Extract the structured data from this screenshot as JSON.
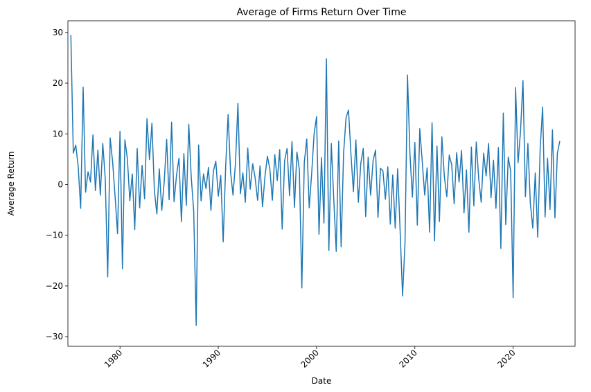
{
  "chart_data": {
    "type": "line",
    "title": "Average of Firms Return Over Time",
    "x_label": "Date",
    "y_label": "Average Return",
    "xlim": [
      1974.7,
      2026.3
    ],
    "ylim": [
      -31.9,
      32.3
    ],
    "xticks": [
      1980,
      1990,
      2000,
      2010,
      2020
    ],
    "yticks": [
      {
        "value": -30,
        "label": "−30"
      },
      {
        "value": -20,
        "label": "−20"
      },
      {
        "value": -10,
        "label": "−10"
      },
      0,
      10,
      20,
      30
    ],
    "grid": false,
    "x": [
      1975,
      1975.25,
      1975.5,
      1975.75,
      1976,
      1976.25,
      1976.5,
      1976.75,
      1977,
      1977.25,
      1977.5,
      1977.75,
      1978,
      1978.25,
      1978.5,
      1978.75,
      1979,
      1979.25,
      1979.5,
      1979.75,
      1980,
      1980.25,
      1980.5,
      1980.75,
      1981,
      1981.25,
      1981.5,
      1981.75,
      1982,
      1982.25,
      1982.5,
      1982.75,
      1983,
      1983.25,
      1983.5,
      1983.75,
      1984,
      1984.25,
      1984.5,
      1984.75,
      1985,
      1985.25,
      1985.5,
      1985.75,
      1986,
      1986.25,
      1986.5,
      1986.75,
      1987,
      1987.25,
      1987.5,
      1987.75,
      1988,
      1988.25,
      1988.5,
      1988.75,
      1989,
      1989.25,
      1989.5,
      1989.75,
      1990,
      1990.25,
      1990.5,
      1990.75,
      1991,
      1991.25,
      1991.5,
      1991.75,
      1992,
      1992.25,
      1992.5,
      1992.75,
      1993,
      1993.25,
      1993.5,
      1993.75,
      1994,
      1994.25,
      1994.5,
      1994.75,
      1995,
      1995.25,
      1995.5,
      1995.75,
      1996,
      1996.25,
      1996.5,
      1996.75,
      1997,
      1997.25,
      1997.5,
      1997.75,
      1998,
      1998.25,
      1998.5,
      1998.75,
      1999,
      1999.25,
      1999.5,
      1999.75,
      2000,
      2000.25,
      2000.5,
      2000.75,
      2001,
      2001.25,
      2001.5,
      2001.75,
      2002,
      2002.25,
      2002.5,
      2002.75,
      2003,
      2003.25,
      2003.5,
      2003.75,
      2004,
      2004.25,
      2004.5,
      2004.75,
      2005,
      2005.25,
      2005.5,
      2005.75,
      2006,
      2006.25,
      2006.5,
      2006.75,
      2007,
      2007.25,
      2007.5,
      2007.75,
      2008,
      2008.25,
      2008.5,
      2008.75,
      2009,
      2009.25,
      2009.5,
      2009.75,
      2010,
      2010.25,
      2010.5,
      2010.75,
      2011,
      2011.25,
      2011.5,
      2011.75,
      2012,
      2012.25,
      2012.5,
      2012.75,
      2013,
      2013.25,
      2013.5,
      2013.75,
      2014,
      2014.25,
      2014.5,
      2014.75,
      2015,
      2015.25,
      2015.5,
      2015.75,
      2016,
      2016.25,
      2016.5,
      2016.75,
      2017,
      2017.25,
      2017.5,
      2017.75,
      2018,
      2018.25,
      2018.5,
      2018.75,
      2019,
      2019.25,
      2019.5,
      2019.75,
      2020,
      2020.25,
      2020.5,
      2020.75,
      2021,
      2021.25,
      2021.5,
      2021.75,
      2022,
      2022.25,
      2022.5,
      2022.75,
      2023,
      2023.25,
      2023.5,
      2023.75,
      2024,
      2024.25,
      2024.5,
      2024.75
    ],
    "series": [
      {
        "color": "#1f77b4",
        "values": [
          29.5,
          6.2,
          7.8,
          3.5,
          -4.7,
          19.2,
          -1.5,
          2.5,
          0.5,
          9.8,
          -1.2,
          6.8,
          -2.1,
          8.1,
          1.2,
          -18.2,
          9.2,
          4.5,
          -2.3,
          -9.7,
          10.5,
          -16.6,
          8.8,
          5.1,
          -3.2,
          2.1,
          -8.9,
          7.1,
          -4.6,
          3.8,
          -2.8,
          13.0,
          4.9,
          12.1,
          -1.2,
          -5.8,
          3.1,
          -5.1,
          0.6,
          8.9,
          -3.0,
          12.3,
          -3.4,
          1.8,
          5.2,
          -7.3,
          6.1,
          -4.1,
          11.9,
          1.4,
          -5.2,
          -27.8,
          7.8,
          -3.2,
          2.1,
          -0.8,
          3.4,
          -5.1,
          2.6,
          4.6,
          -2.3,
          1.8,
          -11.3,
          3.5,
          13.8,
          2.5,
          -2.1,
          4.2,
          16.0,
          -1.8,
          2.3,
          -3.5,
          7.2,
          -0.9,
          4.1,
          1.3,
          -3.1,
          3.7,
          -4.4,
          1.6,
          5.6,
          3.0,
          -3.1,
          5.9,
          0.8,
          6.9,
          -8.8,
          4.7,
          7.1,
          -2.2,
          8.5,
          -4.5,
          6.4,
          2.9,
          -20.4,
          4.3,
          9.0,
          -4.6,
          2.1,
          10.0,
          13.4,
          -9.8,
          5.3,
          -7.6,
          24.8,
          -13.0,
          8.1,
          -2.9,
          -13.2,
          8.6,
          -12.3,
          6.2,
          13.2,
          14.7,
          5.9,
          -1.4,
          8.8,
          -3.5,
          4.2,
          7.1,
          -6.3,
          5.4,
          -2.1,
          4.7,
          6.8,
          -6.5,
          3.2,
          2.7,
          -2.9,
          3.5,
          -7.8,
          1.9,
          -8.6,
          3.1,
          -9.1,
          -22.0,
          -11.4,
          21.6,
          6.1,
          -2.5,
          8.3,
          -8.0,
          11.0,
          4.6,
          -2.1,
          3.3,
          -9.4,
          12.2,
          -11.1,
          7.6,
          -7.3,
          9.4,
          1.6,
          -2.4,
          5.8,
          3.9,
          -3.8,
          6.3,
          0.5,
          6.7,
          -5.6,
          2.9,
          -9.4,
          7.4,
          -4.2,
          8.4,
          1.1,
          -3.5,
          6.2,
          1.7,
          8.1,
          -2.6,
          4.8,
          -4.7,
          7.3,
          -12.6,
          14.1,
          -7.9,
          5.4,
          2.6,
          -22.3,
          19.1,
          4.3,
          10.5,
          20.5,
          -2.4,
          8.1,
          -3.7,
          -8.6,
          2.3,
          -10.4,
          7.1,
          15.3,
          -6.4,
          5.2,
          -4.9,
          10.8,
          -6.6,
          6.2,
          8.6
        ]
      }
    ]
  }
}
